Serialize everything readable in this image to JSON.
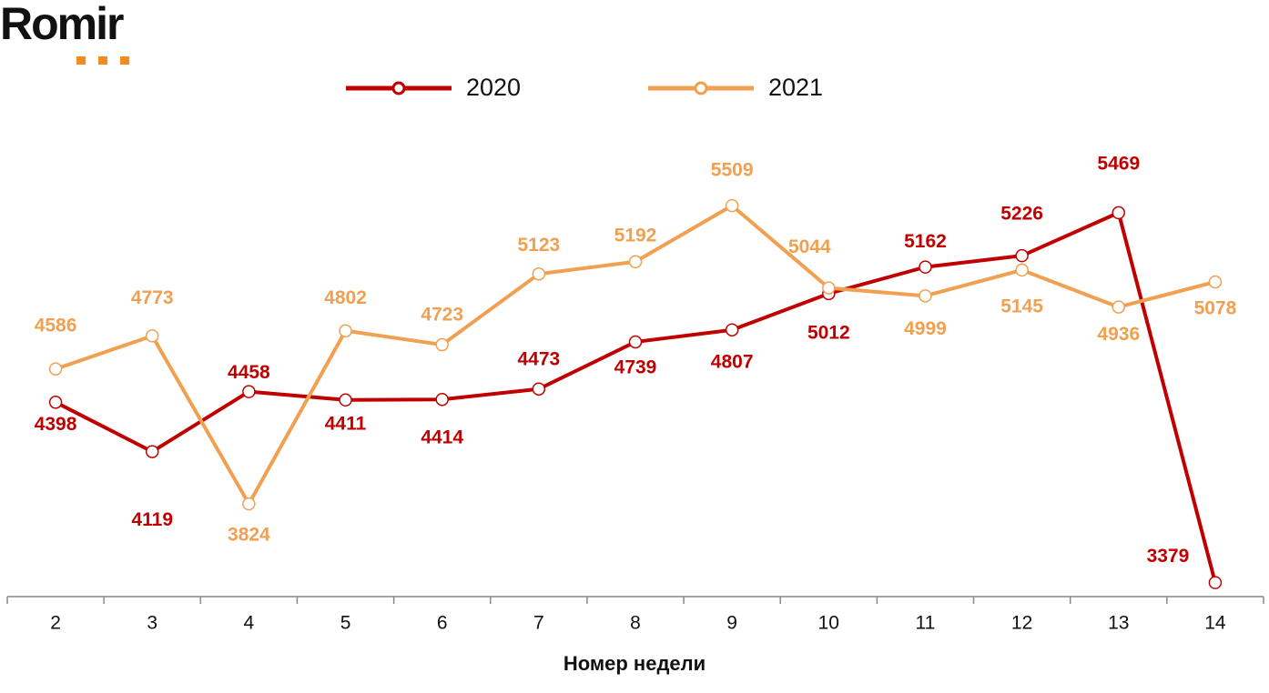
{
  "logo": "Romir",
  "chart_data": {
    "type": "line",
    "x_label": "Номер недели",
    "categories": [
      "2",
      "3",
      "4",
      "5",
      "6",
      "7",
      "8",
      "9",
      "10",
      "11",
      "12",
      "13",
      "14"
    ],
    "series": [
      {
        "name": "2020",
        "color": "#c00000",
        "values": [
          4398,
          4119,
          4458,
          4411,
          4414,
          4473,
          4739,
          4807,
          5012,
          5162,
          5226,
          5469,
          3379
        ]
      },
      {
        "name": "2021",
        "color": "#f0a050",
        "values": [
          4586,
          4773,
          3824,
          4802,
          4723,
          5123,
          5192,
          5509,
          5044,
          4999,
          5145,
          4936,
          5078
        ]
      }
    ],
    "ylim": [
      3300,
      5900
    ],
    "legend": "top"
  }
}
